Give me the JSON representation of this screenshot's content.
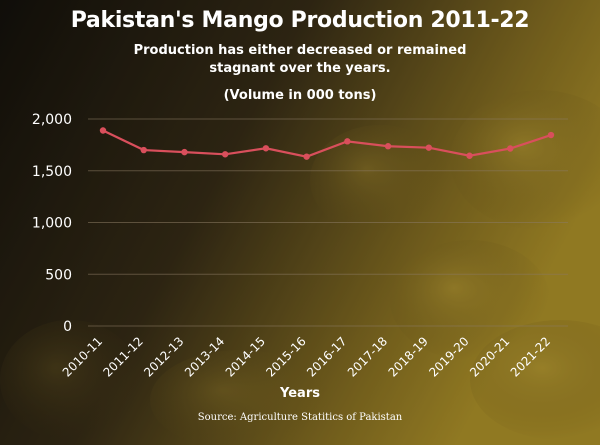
{
  "header": {
    "title": "Pakistan's Mango Production 2011-22",
    "subtitle": "Production has either decreased or remained stagnant over the years.",
    "unit_note": "(Volume in 000 tons)"
  },
  "footer": {
    "source": "Source: Agriculture Statitics of Pakistan"
  },
  "colors": {
    "line": "#d94f5c",
    "grid": "#8a7a62",
    "background_dark": "#1c1710",
    "background_mango": "#b89a2e"
  },
  "chart_data": {
    "type": "line",
    "title": "Pakistan's Mango Production 2011-22",
    "xlabel": "Years",
    "ylabel": "",
    "categories": [
      "2010-11",
      "2011-12",
      "2012-13",
      "2013-14",
      "2014-15",
      "2015-16",
      "2016-17",
      "2017-18",
      "2018-19",
      "2019-20",
      "2020-21",
      "2021-22"
    ],
    "series": [
      {
        "name": "",
        "values": [
          1889,
          1700,
          1680,
          1659,
          1717,
          1636,
          1784,
          1737,
          1723,
          1645,
          1715,
          1845
        ]
      }
    ],
    "ylim": [
      0,
      2000
    ],
    "yticks": [
      0,
      500,
      1000,
      1500,
      2000
    ],
    "ytick_labels": [
      "0",
      "500",
      "1,000",
      "1,500",
      "2,000"
    ],
    "grid": "horizontal",
    "legend": "none"
  }
}
